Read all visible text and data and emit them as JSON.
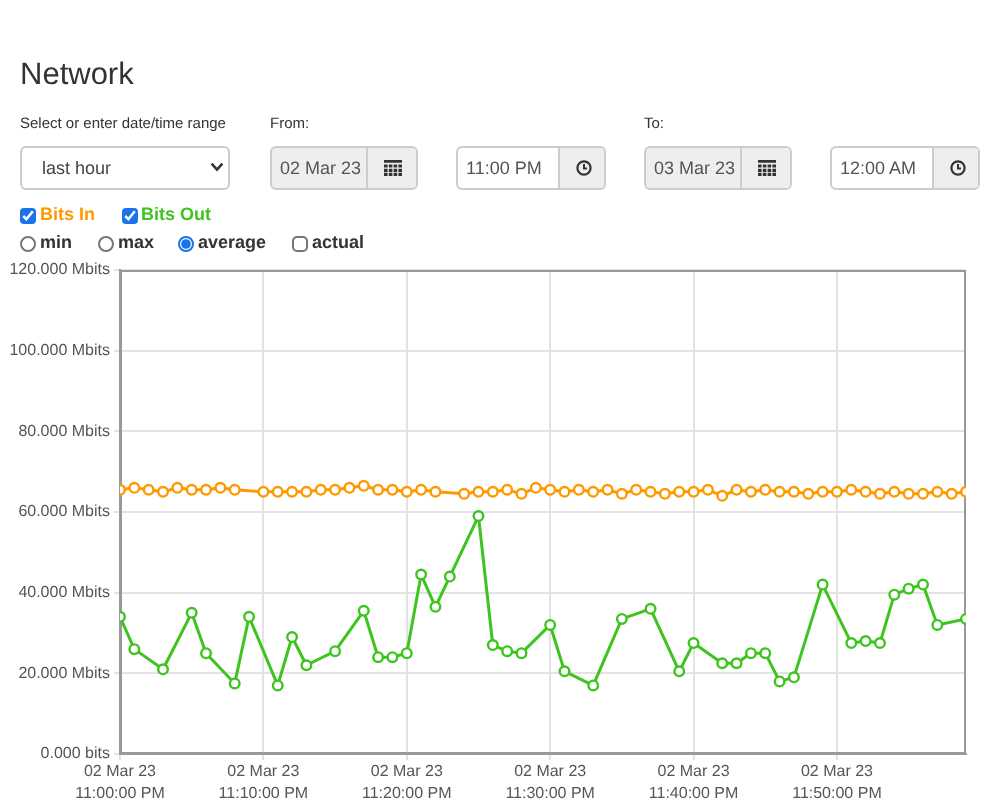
{
  "chart_data": {
    "type": "line",
    "title": "Network",
    "annotations": [
      "Select or enter date/time range",
      "last hour",
      "From:",
      "02 Mar 23",
      "11:00 PM",
      "To:",
      "03 Mar 23",
      "12:00 AM",
      "min",
      "max",
      "average",
      "actual"
    ],
    "xlim": [
      "--03-02T23:00",
      "--03-02T23:59"
    ],
    "xticks": [
      {
        "value": "--03-02T23:00",
        "label": "02 Mar 23\n11:00:00 PM"
      },
      {
        "value": "--03-02T23:10",
        "label": "02 Mar 23\n11:10:00 PM"
      },
      {
        "value": "--03-02T23:20",
        "label": "02 Mar 23\n11:20:00 PM"
      },
      {
        "value": "--03-02T23:30",
        "label": "02 Mar 23\n11:30:00 PM"
      },
      {
        "value": "--03-02T23:40",
        "label": "02 Mar 23\n11:40:00 PM"
      },
      {
        "value": "--03-02T23:50",
        "label": "02 Mar 23\n11:50:00 PM"
      }
    ],
    "ylim": [
      0,
      120
    ],
    "yticks": [
      {
        "value": 0,
        "label": "0.000 bits"
      },
      {
        "value": 20,
        "label": "20.000 Mbits"
      },
      {
        "value": 40,
        "label": "40.000 Mbits"
      },
      {
        "value": 60,
        "label": "60.000 Mbits"
      },
      {
        "value": 80,
        "label": "80.000 Mbits"
      },
      {
        "value": 100,
        "label": "100.000 Mbits"
      },
      {
        "value": 120,
        "label": "120.000 Mbits"
      }
    ],
    "grid": true,
    "legend": "top left",
    "marker": "circle",
    "series": [
      {
        "name": "Bits In",
        "color": "#ff9900",
        "x": [
          "--03-02T23:00",
          "--03-02T23:01",
          "--03-02T23:02",
          "--03-02T23:03",
          "--03-02T23:04",
          "--03-02T23:05",
          "--03-02T23:06",
          "--03-02T23:07",
          "--03-02T23:08",
          "--03-02T23:10",
          "--03-02T23:11",
          "--03-02T23:12",
          "--03-02T23:13",
          "--03-02T23:14",
          "--03-02T23:15",
          "--03-02T23:16",
          "--03-02T23:17",
          "--03-02T23:18",
          "--03-02T23:19",
          "--03-02T23:20",
          "--03-02T23:21",
          "--03-02T23:22",
          "--03-02T23:24",
          "--03-02T23:25",
          "--03-02T23:26",
          "--03-02T23:27",
          "--03-02T23:28",
          "--03-02T23:29",
          "--03-02T23:30",
          "--03-02T23:31",
          "--03-02T23:32",
          "--03-02T23:33",
          "--03-02T23:34",
          "--03-02T23:35",
          "--03-02T23:36",
          "--03-02T23:37",
          "--03-02T23:38",
          "--03-02T23:39",
          "--03-02T23:40",
          "--03-02T23:41",
          "--03-02T23:42",
          "--03-02T23:43",
          "--03-02T23:44",
          "--03-02T23:45",
          "--03-02T23:46",
          "--03-02T23:47",
          "--03-02T23:48",
          "--03-02T23:49",
          "--03-02T23:50",
          "--03-02T23:51",
          "--03-02T23:52",
          "--03-02T23:53",
          "--03-02T23:54",
          "--03-02T23:55",
          "--03-02T23:56",
          "--03-02T23:57",
          "--03-02T23:58",
          "--03-02T23:59"
        ],
        "values": [
          65.5,
          66,
          65.5,
          65,
          66,
          65.5,
          65.5,
          66,
          65.5,
          65,
          65,
          65,
          65,
          65.5,
          65.5,
          66,
          66.5,
          65.5,
          65.5,
          65,
          65.5,
          65,
          64.5,
          65,
          65,
          65.5,
          64.5,
          66,
          65.5,
          65,
          65.5,
          65,
          65.5,
          64.5,
          65.5,
          65,
          64.5,
          65,
          65,
          65.5,
          64,
          65.5,
          65,
          65.5,
          65,
          65,
          64.5,
          65,
          65,
          65.5,
          65,
          64.5,
          65,
          64.5,
          64.5,
          65,
          64.5,
          65
        ]
      },
      {
        "name": "Bits Out",
        "color": "#3ec41e",
        "x": [
          "--03-02T23:00",
          "--03-02T23:01",
          "--03-02T23:03",
          "--03-02T23:05",
          "--03-02T23:06",
          "--03-02T23:08",
          "--03-02T23:09",
          "--03-02T23:11",
          "--03-02T23:12",
          "--03-02T23:13",
          "--03-02T23:15",
          "--03-02T23:17",
          "--03-02T23:18",
          "--03-02T23:19",
          "--03-02T23:20",
          "--03-02T23:21",
          "--03-02T23:22",
          "--03-02T23:23",
          "--03-02T23:25",
          "--03-02T23:26",
          "--03-02T23:27",
          "--03-02T23:28",
          "--03-02T23:30",
          "--03-02T23:31",
          "--03-02T23:33",
          "--03-02T23:35",
          "--03-02T23:37",
          "--03-02T23:39",
          "--03-02T23:40",
          "--03-02T23:42",
          "--03-02T23:43",
          "--03-02T23:44",
          "--03-02T23:45",
          "--03-02T23:46",
          "--03-02T23:47",
          "--03-02T23:49",
          "--03-02T23:51",
          "--03-02T23:52",
          "--03-02T23:53",
          "--03-02T23:54",
          "--03-02T23:55",
          "--03-02T23:56",
          "--03-02T23:57",
          "--03-02T23:59"
        ],
        "values": [
          34,
          26,
          21,
          35,
          25,
          17.5,
          34,
          17,
          29,
          22,
          25.5,
          35.5,
          24,
          24,
          25,
          44.5,
          36.5,
          44,
          59,
          27,
          25.5,
          25,
          32,
          20.5,
          17,
          33.5,
          36,
          20.5,
          27.5,
          22.5,
          22.5,
          25,
          25,
          18,
          19,
          42,
          27.5,
          28,
          27.5,
          39.5,
          41,
          42,
          32,
          33.5
        ]
      }
    ]
  }
}
